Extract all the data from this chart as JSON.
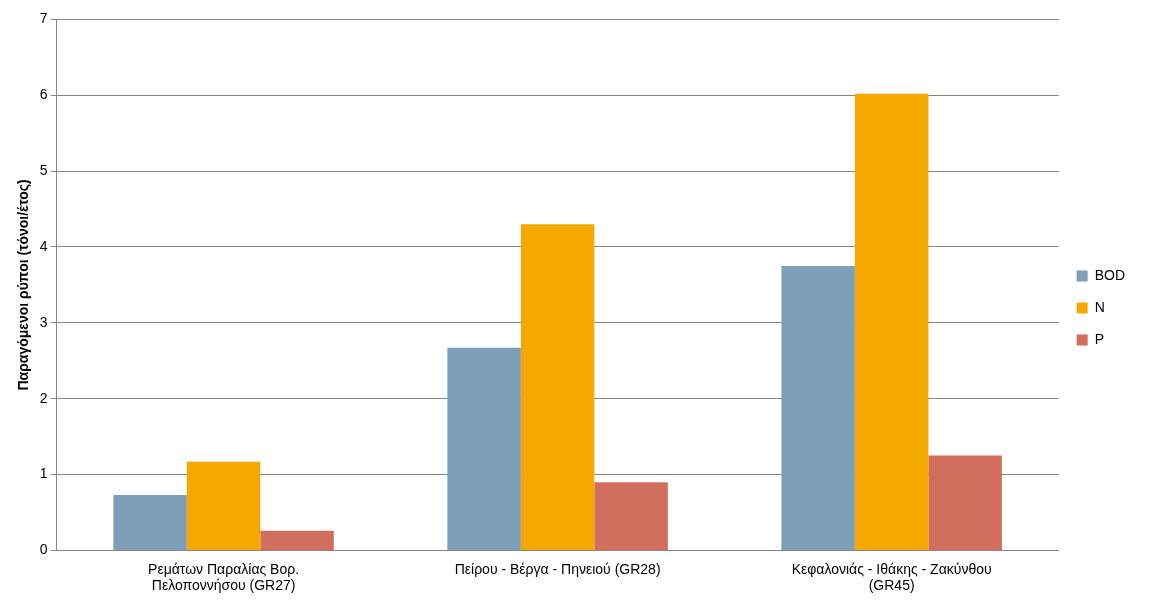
{
  "chart_data": {
    "type": "bar",
    "ylabel": "Παραγόμενοι ρύποι (τόνοι/έτος)",
    "categories": [
      "Ρεμάτων Παραλίας Βορ. Πελοποννήσου (GR27)",
      "Πείρου - Βέργα - Πηνειού (GR28)",
      "Κεφαλονιάς - Ιθάκης - Ζακύνθου (GR45)"
    ],
    "series": [
      {
        "name": "BOD",
        "color": "#7f9fb8",
        "values": [
          0.73,
          2.67,
          3.75
        ]
      },
      {
        "name": "N",
        "color": "#f5a800",
        "values": [
          1.17,
          4.3,
          6.02
        ]
      },
      {
        "name": "P",
        "color": "#d26e5d",
        "values": [
          0.26,
          0.9,
          1.25
        ]
      }
    ],
    "ylim": [
      0,
      7
    ],
    "yticks": [
      0,
      1,
      2,
      3,
      4,
      5,
      6,
      7
    ],
    "grid": "y",
    "legend": "right"
  }
}
